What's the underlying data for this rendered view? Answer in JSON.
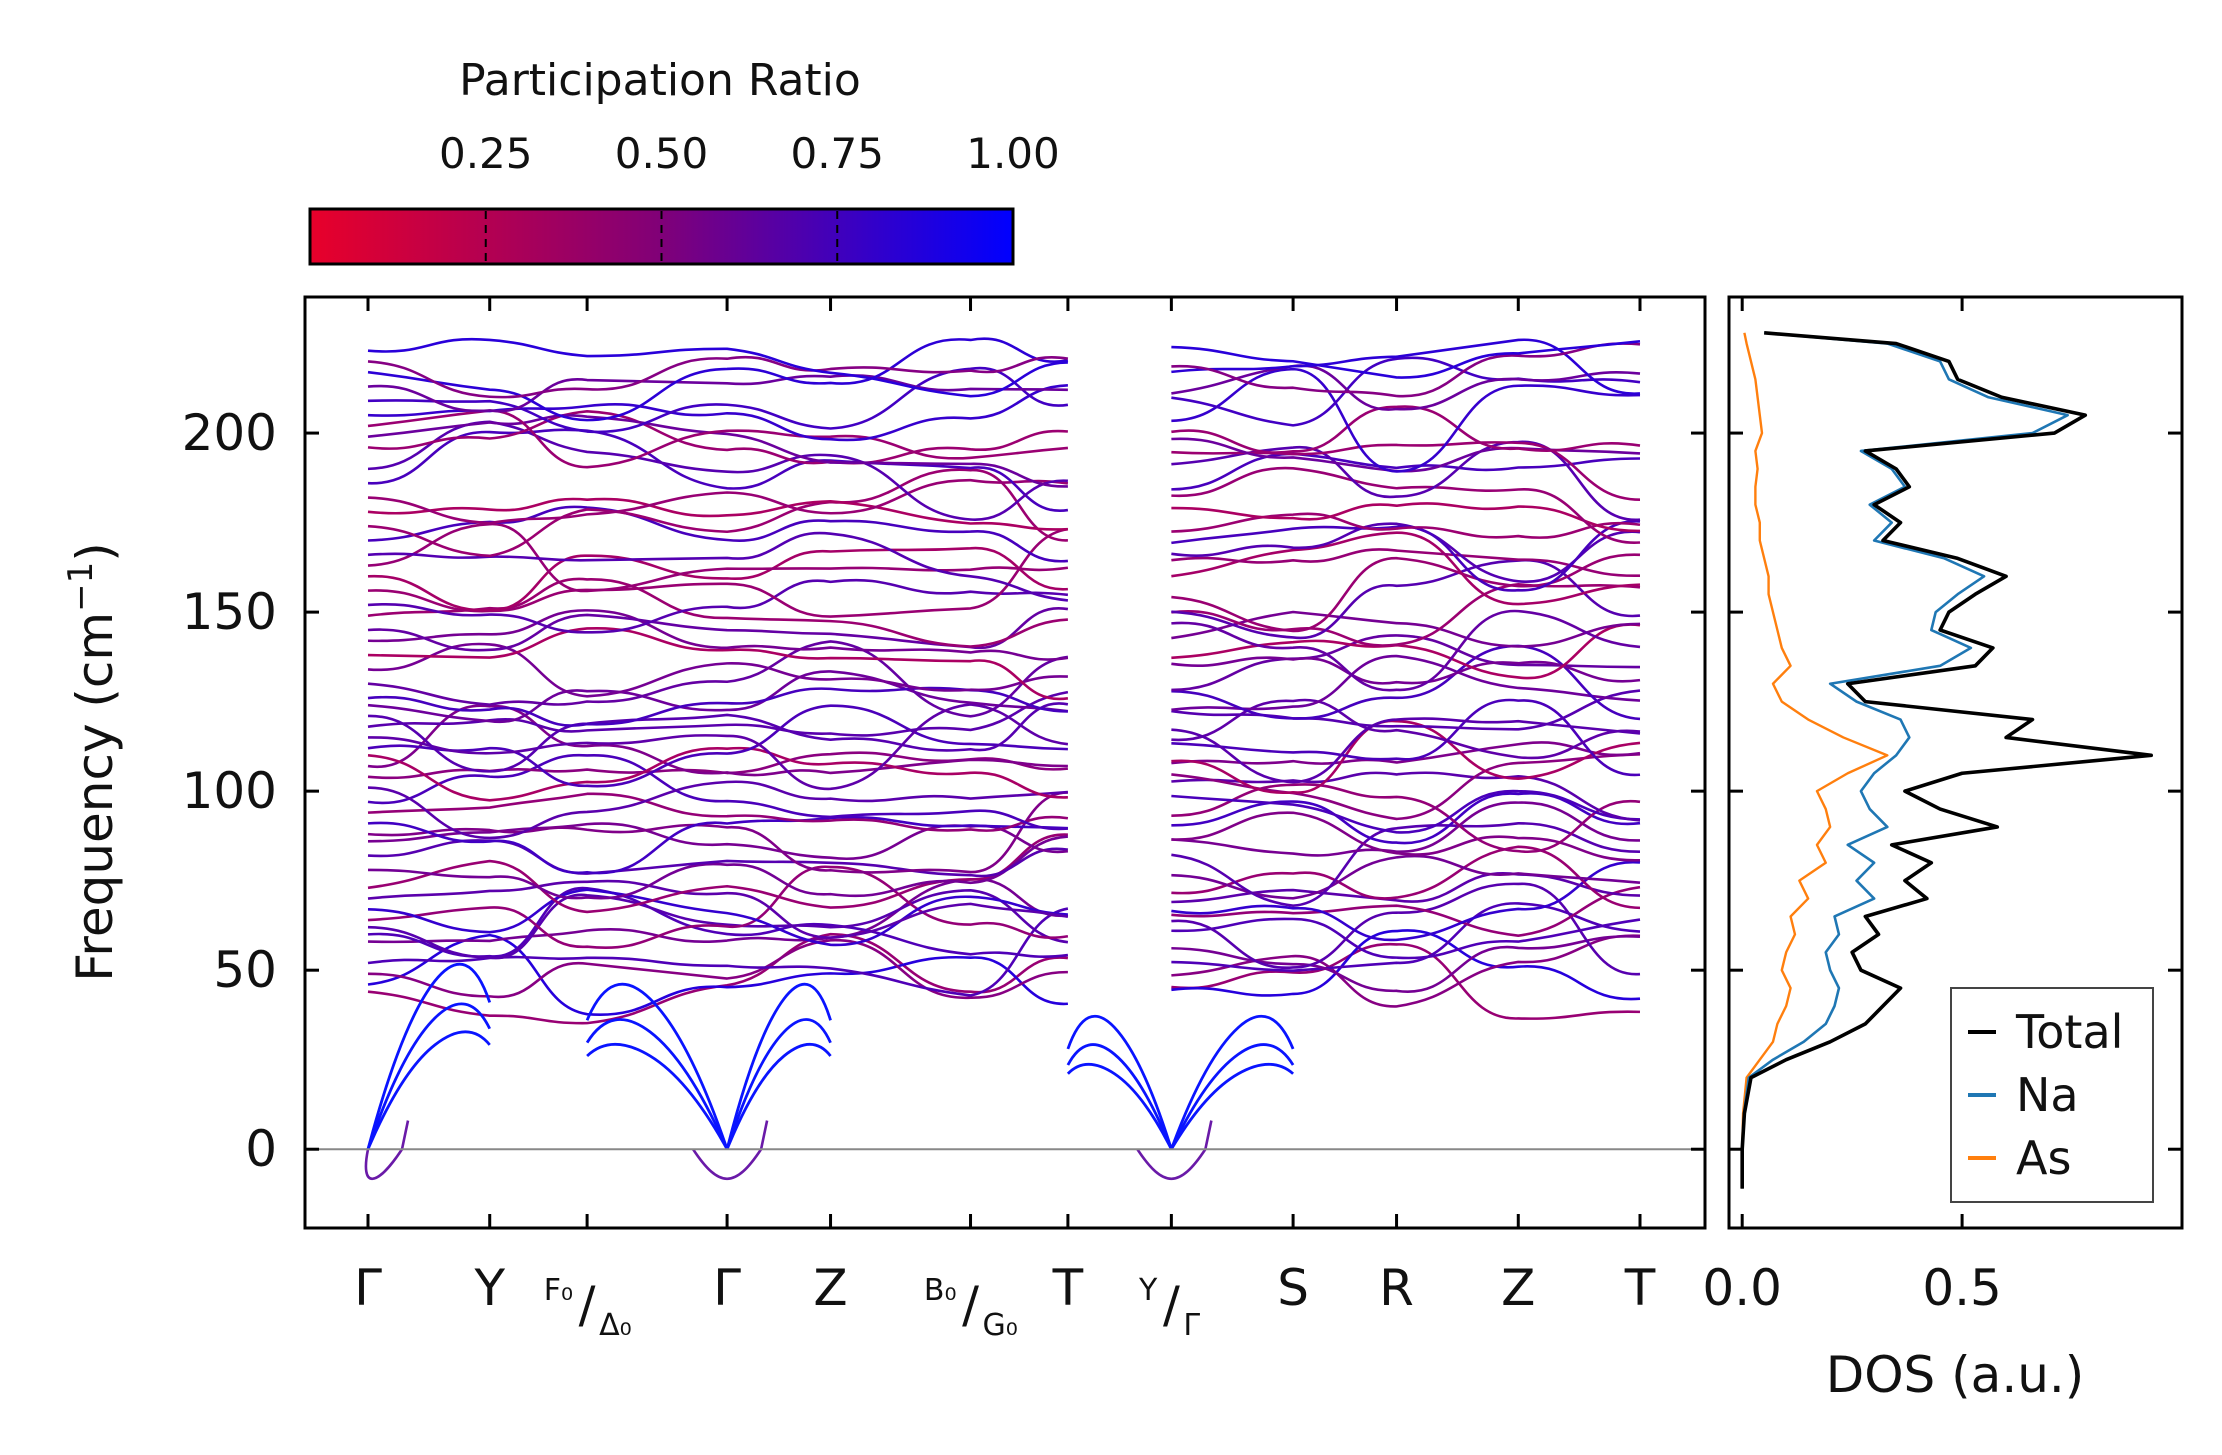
{
  "chart_data": [
    {
      "type": "line",
      "name": "phonon-band-structure",
      "ylabel_main": "Frequency (cm",
      "ylabel_sup": "−1",
      "ylabel_close": ")",
      "ylim": [
        -22,
        238
      ],
      "yticks": [
        0,
        50,
        100,
        150,
        200
      ],
      "ytick_labels": [
        "0",
        "50",
        "100",
        "150",
        "200"
      ],
      "segments": [
        {
          "from": "Γ",
          "to": "Y",
          "length": 1.0
        },
        {
          "from": "Y",
          "to": "F0",
          "length": 0.8
        },
        {
          "from": "Δ0",
          "to": "Γ",
          "length": 1.15
        },
        {
          "from": "Γ",
          "to": "Z",
          "length": 0.85
        },
        {
          "from": "Z",
          "to": "B0",
          "length": 1.15
        },
        {
          "from": "G0",
          "to": "T",
          "length": 0.8
        },
        {
          "from": "T",
          "to": "Y",
          "length": 0.85
        },
        {
          "from": "Γ",
          "to": "S",
          "length": 1.0
        },
        {
          "from": "S",
          "to": "R",
          "length": 0.85
        },
        {
          "from": "R",
          "to": "Z",
          "length": 1.0
        },
        {
          "from": "Z",
          "to": "T",
          "length": 1.0
        }
      ],
      "kticks": [
        {
          "label": "Γ",
          "sup": "",
          "sub": ""
        },
        {
          "label": "Y",
          "sup": "",
          "sub": ""
        },
        {
          "label": "/",
          "sup": "F₀",
          "sub": "Δ₀"
        },
        {
          "label": "Γ",
          "sup": "",
          "sub": ""
        },
        {
          "label": "Z",
          "sup": "",
          "sub": ""
        },
        {
          "label": "/",
          "sup": "B₀",
          "sub": "G₀"
        },
        {
          "label": "T",
          "sup": "",
          "sub": ""
        },
        {
          "label": "/",
          "sup": "Y",
          "sub": "Γ"
        },
        {
          "label": "S",
          "sup": "",
          "sub": ""
        },
        {
          "label": "R",
          "sup": "",
          "sub": ""
        },
        {
          "label": "Z",
          "sup": "",
          "sub": ""
        },
        {
          "label": "T",
          "sup": "",
          "sub": ""
        }
      ],
      "gamma_points": [
        0,
        3,
        7
      ],
      "acoustic_top": [
        47,
        42,
        34
      ],
      "optical_start_frequencies": [
        44,
        46,
        49,
        52,
        58,
        60,
        62,
        64,
        67,
        70,
        73,
        78,
        82,
        86,
        88,
        91,
        94,
        97,
        101,
        104,
        107,
        110,
        112,
        115,
        118,
        121,
        124,
        126,
        130,
        134,
        138,
        142,
        145,
        149,
        152,
        156,
        160,
        163,
        166,
        170,
        174,
        178,
        182,
        186,
        190,
        196,
        199,
        202,
        205,
        209,
        213,
        217,
        220,
        223
      ],
      "unstable_mode_min": -11
    },
    {
      "type": "line",
      "name": "density-of-states",
      "xlabel": "DOS (a.u.)",
      "xlim": [
        -0.03,
        1.0
      ],
      "xticks": [
        0.0,
        0.5
      ],
      "xtick_labels": [
        "0.0",
        "0.5"
      ],
      "legend": [
        "Total",
        "Na",
        "As"
      ],
      "legend_location": "lower-right",
      "series": [
        {
          "name": "Total",
          "color": "#000000",
          "points": [
            [
              -11,
              0.0
            ],
            [
              0,
              0.0
            ],
            [
              10,
              0.005
            ],
            [
              20,
              0.02
            ],
            [
              25,
              0.1
            ],
            [
              30,
              0.2
            ],
            [
              35,
              0.28
            ],
            [
              40,
              0.32
            ],
            [
              45,
              0.36
            ],
            [
              50,
              0.27
            ],
            [
              55,
              0.25
            ],
            [
              60,
              0.31
            ],
            [
              65,
              0.28
            ],
            [
              70,
              0.42
            ],
            [
              75,
              0.37
            ],
            [
              80,
              0.43
            ],
            [
              85,
              0.34
            ],
            [
              90,
              0.58
            ],
            [
              95,
              0.45
            ],
            [
              100,
              0.37
            ],
            [
              105,
              0.5
            ],
            [
              110,
              0.93
            ],
            [
              115,
              0.6
            ],
            [
              120,
              0.66
            ],
            [
              125,
              0.28
            ],
            [
              130,
              0.24
            ],
            [
              135,
              0.53
            ],
            [
              140,
              0.57
            ],
            [
              145,
              0.45
            ],
            [
              150,
              0.47
            ],
            [
              155,
              0.53
            ],
            [
              160,
              0.6
            ],
            [
              165,
              0.49
            ],
            [
              170,
              0.32
            ],
            [
              175,
              0.36
            ],
            [
              180,
              0.3
            ],
            [
              185,
              0.38
            ],
            [
              190,
              0.35
            ],
            [
              195,
              0.28
            ],
            [
              200,
              0.71
            ],
            [
              205,
              0.78
            ],
            [
              210,
              0.59
            ],
            [
              215,
              0.49
            ],
            [
              220,
              0.47
            ],
            [
              225,
              0.35
            ],
            [
              228,
              0.05
            ]
          ]
        },
        {
          "name": "Na",
          "color": "#1f77b4",
          "points": [
            [
              -11,
              0.0
            ],
            [
              0,
              0.0
            ],
            [
              10,
              0.004
            ],
            [
              20,
              0.015
            ],
            [
              25,
              0.07
            ],
            [
              30,
              0.14
            ],
            [
              35,
              0.19
            ],
            [
              40,
              0.21
            ],
            [
              45,
              0.22
            ],
            [
              50,
              0.2
            ],
            [
              55,
              0.19
            ],
            [
              60,
              0.22
            ],
            [
              65,
              0.21
            ],
            [
              70,
              0.3
            ],
            [
              75,
              0.26
            ],
            [
              80,
              0.3
            ],
            [
              85,
              0.24
            ],
            [
              90,
              0.33
            ],
            [
              95,
              0.29
            ],
            [
              100,
              0.27
            ],
            [
              105,
              0.3
            ],
            [
              110,
              0.35
            ],
            [
              115,
              0.38
            ],
            [
              120,
              0.36
            ],
            [
              125,
              0.26
            ],
            [
              130,
              0.2
            ],
            [
              135,
              0.45
            ],
            [
              140,
              0.52
            ],
            [
              145,
              0.43
            ],
            [
              150,
              0.44
            ],
            [
              155,
              0.49
            ],
            [
              160,
              0.55
            ],
            [
              165,
              0.46
            ],
            [
              170,
              0.3
            ],
            [
              175,
              0.34
            ],
            [
              180,
              0.29
            ],
            [
              185,
              0.37
            ],
            [
              190,
              0.34
            ],
            [
              195,
              0.27
            ],
            [
              200,
              0.66
            ],
            [
              205,
              0.74
            ],
            [
              210,
              0.56
            ],
            [
              215,
              0.47
            ],
            [
              220,
              0.45
            ],
            [
              225,
              0.33
            ],
            [
              228,
              0.05
            ]
          ]
        },
        {
          "name": "As",
          "color": "#ff7f0e",
          "points": [
            [
              -11,
              0.0
            ],
            [
              0,
              0.0
            ],
            [
              10,
              0.002
            ],
            [
              20,
              0.01
            ],
            [
              25,
              0.04
            ],
            [
              30,
              0.07
            ],
            [
              35,
              0.08
            ],
            [
              40,
              0.1
            ],
            [
              45,
              0.11
            ],
            [
              50,
              0.09
            ],
            [
              55,
              0.1
            ],
            [
              60,
              0.12
            ],
            [
              65,
              0.11
            ],
            [
              70,
              0.15
            ],
            [
              75,
              0.13
            ],
            [
              80,
              0.19
            ],
            [
              85,
              0.17
            ],
            [
              90,
              0.2
            ],
            [
              95,
              0.19
            ],
            [
              100,
              0.17
            ],
            [
              105,
              0.24
            ],
            [
              110,
              0.33
            ],
            [
              115,
              0.23
            ],
            [
              120,
              0.15
            ],
            [
              125,
              0.09
            ],
            [
              130,
              0.07
            ],
            [
              135,
              0.11
            ],
            [
              140,
              0.09
            ],
            [
              145,
              0.08
            ],
            [
              150,
              0.07
            ],
            [
              155,
              0.06
            ],
            [
              160,
              0.06
            ],
            [
              165,
              0.05
            ],
            [
              170,
              0.04
            ],
            [
              175,
              0.04
            ],
            [
              180,
              0.03
            ],
            [
              185,
              0.03
            ],
            [
              190,
              0.035
            ],
            [
              195,
              0.03
            ],
            [
              200,
              0.045
            ],
            [
              205,
              0.04
            ],
            [
              210,
              0.035
            ],
            [
              215,
              0.03
            ],
            [
              220,
              0.02
            ],
            [
              225,
              0.01
            ],
            [
              228,
              0.005
            ]
          ]
        }
      ]
    },
    {
      "type": "heatmap",
      "name": "participation-ratio-colorbar",
      "title": "Participation Ratio",
      "range": [
        0.0,
        1.0
      ],
      "ticks": [
        0.25,
        0.5,
        0.75,
        1.0
      ],
      "tick_labels": [
        "0.25",
        "0.50",
        "0.75",
        "1.00"
      ],
      "color_low": "#e8002a",
      "color_high": "#0000ff"
    }
  ]
}
